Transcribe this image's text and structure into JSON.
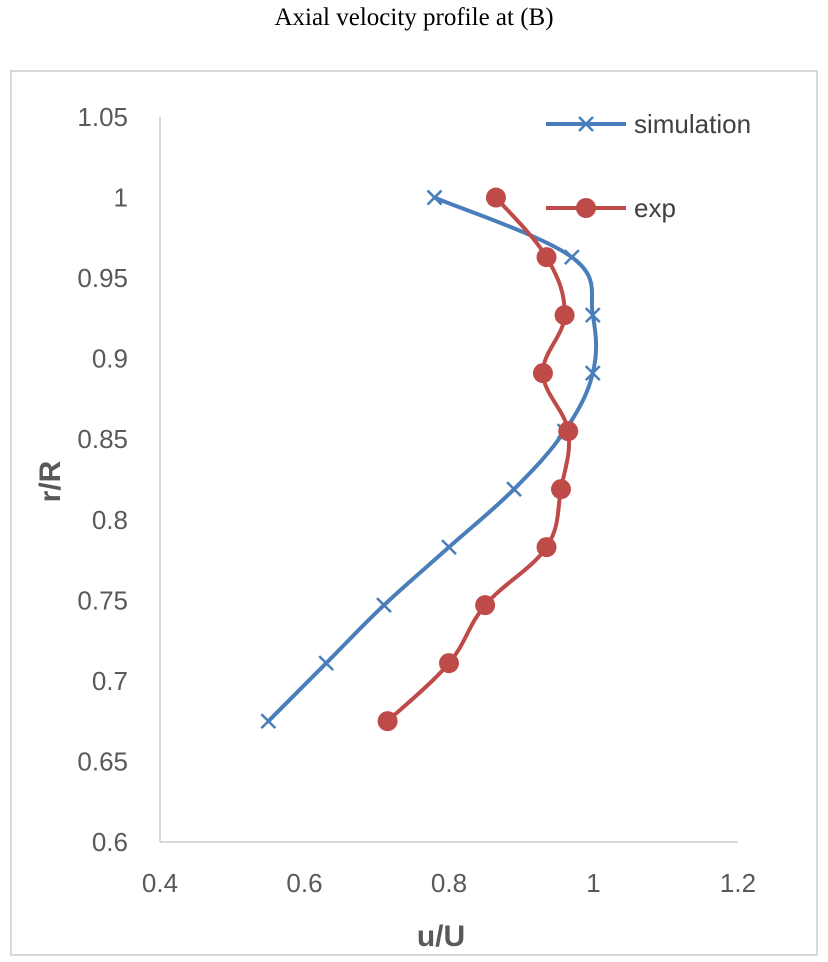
{
  "chart_data": {
    "type": "line",
    "title": "Axial velocity profile at (B)",
    "xlabel": "u/U",
    "ylabel": "r/R",
    "xlim": [
      0.4,
      1.2
    ],
    "ylim": [
      0.6,
      1.05
    ],
    "xticks": [
      "0.4",
      "0.6",
      "0.8",
      "1",
      "1.2"
    ],
    "yticks": [
      "0.6",
      "0.65",
      "0.7",
      "0.75",
      "0.8",
      "0.85",
      "0.9",
      "0.95",
      "1",
      "1.05"
    ],
    "grid": false,
    "legend_position": "top-right",
    "series": [
      {
        "name": "simulation",
        "color": "#4a7ebb",
        "marker": "x",
        "smooth": true,
        "points": [
          {
            "x": 0.55,
            "y": 0.675
          },
          {
            "x": 0.63,
            "y": 0.711
          },
          {
            "x": 0.71,
            "y": 0.747
          },
          {
            "x": 0.8,
            "y": 0.783
          },
          {
            "x": 0.89,
            "y": 0.819
          },
          {
            "x": 0.96,
            "y": 0.855
          },
          {
            "x": 0.999,
            "y": 0.891
          },
          {
            "x": 0.999,
            "y": 0.927
          },
          {
            "x": 0.97,
            "y": 0.963
          },
          {
            "x": 0.78,
            "y": 1.0
          }
        ]
      },
      {
        "name": "exp",
        "color": "#be4b48",
        "marker": "circle",
        "smooth": true,
        "points": [
          {
            "x": 0.715,
            "y": 0.675
          },
          {
            "x": 0.8,
            "y": 0.711
          },
          {
            "x": 0.85,
            "y": 0.747
          },
          {
            "x": 0.935,
            "y": 0.783
          },
          {
            "x": 0.955,
            "y": 0.819
          },
          {
            "x": 0.965,
            "y": 0.855
          },
          {
            "x": 0.93,
            "y": 0.891
          },
          {
            "x": 0.96,
            "y": 0.927
          },
          {
            "x": 0.935,
            "y": 0.963
          },
          {
            "x": 0.865,
            "y": 1.0
          }
        ]
      }
    ]
  }
}
